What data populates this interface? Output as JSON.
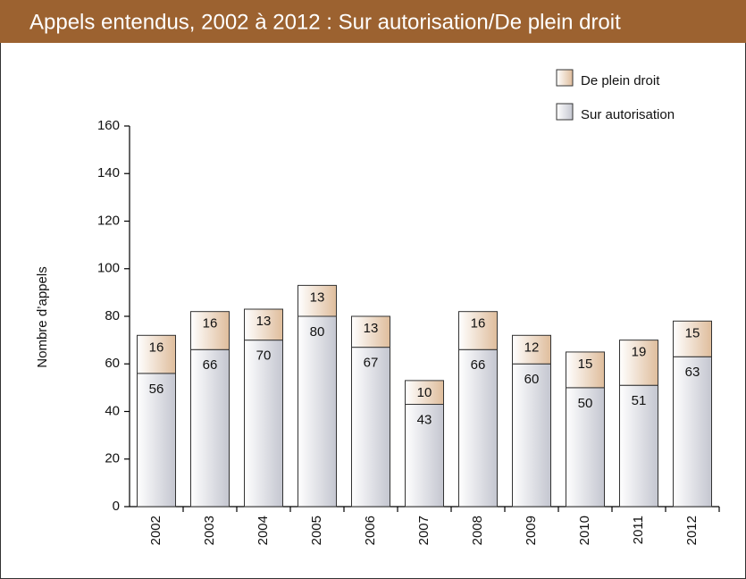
{
  "chart_data": {
    "type": "bar",
    "stacked": true,
    "title": "Appels entendus, 2002 à 2012 : Sur autorisation/De plein droit",
    "ylabel": "Nombre d’appels",
    "categories": [
      "2002",
      "2003",
      "2004",
      "2005",
      "2006",
      "2007",
      "2008",
      "2009",
      "2010",
      "2011",
      "2012"
    ],
    "series": [
      {
        "name": "Sur autorisation",
        "color": "#c4c6d0",
        "values": [
          56,
          66,
          70,
          80,
          67,
          43,
          66,
          60,
          50,
          51,
          63
        ]
      },
      {
        "name": "De plein droit",
        "color": "#dfbd9c",
        "values": [
          16,
          16,
          13,
          13,
          13,
          10,
          16,
          12,
          15,
          19,
          15
        ]
      }
    ],
    "ylim": [
      0,
      160
    ],
    "yticks": [
      0,
      20,
      40,
      60,
      80,
      100,
      120,
      140,
      160
    ],
    "legend": "top-right"
  }
}
